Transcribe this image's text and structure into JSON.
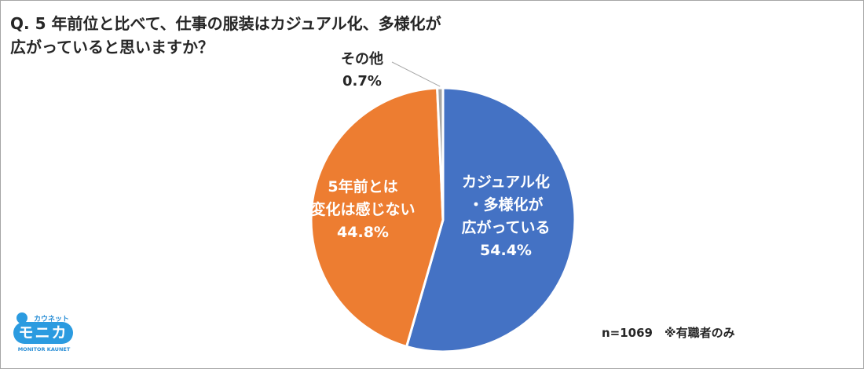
{
  "title_lines": [
    "Q. 5 年前位と比べて、仕事の服装はカジュアル化、多様化が",
    "広がっていると思いますか？"
  ],
  "note": "n=1069　※有職者のみ",
  "logo": {
    "top_text": "カウネット",
    "main_text": "モニカ",
    "bottom_text": "MONITOR KAUNET"
  },
  "chart_data": {
    "type": "pie",
    "slices": [
      {
        "label_lines": [
          "カジュアル化",
          "・多様化が",
          "広がっている"
        ],
        "percent_label": "54.4%",
        "value": 54.4,
        "color": "#4472c4"
      },
      {
        "label_lines": [
          "5年前とは",
          "変化は感じない"
        ],
        "percent_label": "44.8%",
        "value": 44.8,
        "color": "#ed7d31"
      },
      {
        "label_lines": [
          "その他"
        ],
        "percent_label": "0.7%",
        "value": 0.7,
        "color": "#a5a5a5"
      }
    ],
    "start_angle_deg": 0,
    "direction": "clockwise",
    "legend": "none"
  }
}
